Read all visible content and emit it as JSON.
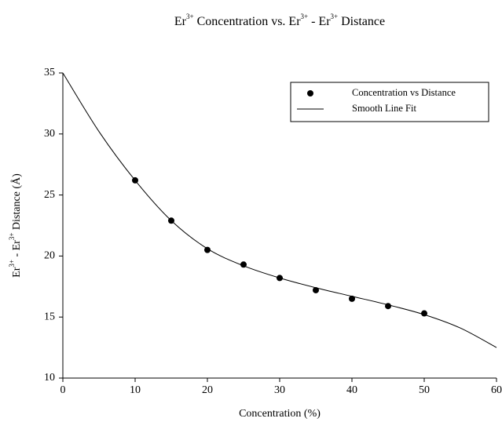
{
  "chart_data": {
    "type": "scatter",
    "title": [
      "Er",
      "3+",
      " Concentration vs. Er",
      "3+",
      " - Er",
      "3+",
      " Distance"
    ],
    "x_label": "Concentration (%)",
    "y_label": [
      "Er",
      "3+",
      " - Er",
      "3+",
      " Distance (Å)"
    ],
    "xlim": [
      0,
      60
    ],
    "xticks": [
      0,
      10,
      20,
      30,
      40,
      50,
      60
    ],
    "ylim": [
      10,
      35
    ],
    "yticks": [
      10,
      15,
      20,
      25,
      30,
      35
    ],
    "legend": "upper right",
    "series": [
      {
        "name": "Concentration vs Distance",
        "kind": "points",
        "color": "#000000",
        "x": [
          10,
          15,
          20,
          25,
          30,
          35,
          40,
          45,
          50
        ],
        "values": [
          26.2,
          22.9,
          20.5,
          19.3,
          18.2,
          17.2,
          16.5,
          15.9,
          15.3
        ]
      },
      {
        "name": "Smooth Line Fit",
        "kind": "line",
        "color": "#000000",
        "x": [
          0,
          5,
          10,
          15,
          20,
          25,
          30,
          35,
          40,
          45,
          50,
          55,
          60
        ],
        "values": [
          35.0,
          30.2,
          26.2,
          22.9,
          20.6,
          19.2,
          18.2,
          17.4,
          16.7,
          16.0,
          15.2,
          14.1,
          12.5
        ]
      }
    ]
  }
}
